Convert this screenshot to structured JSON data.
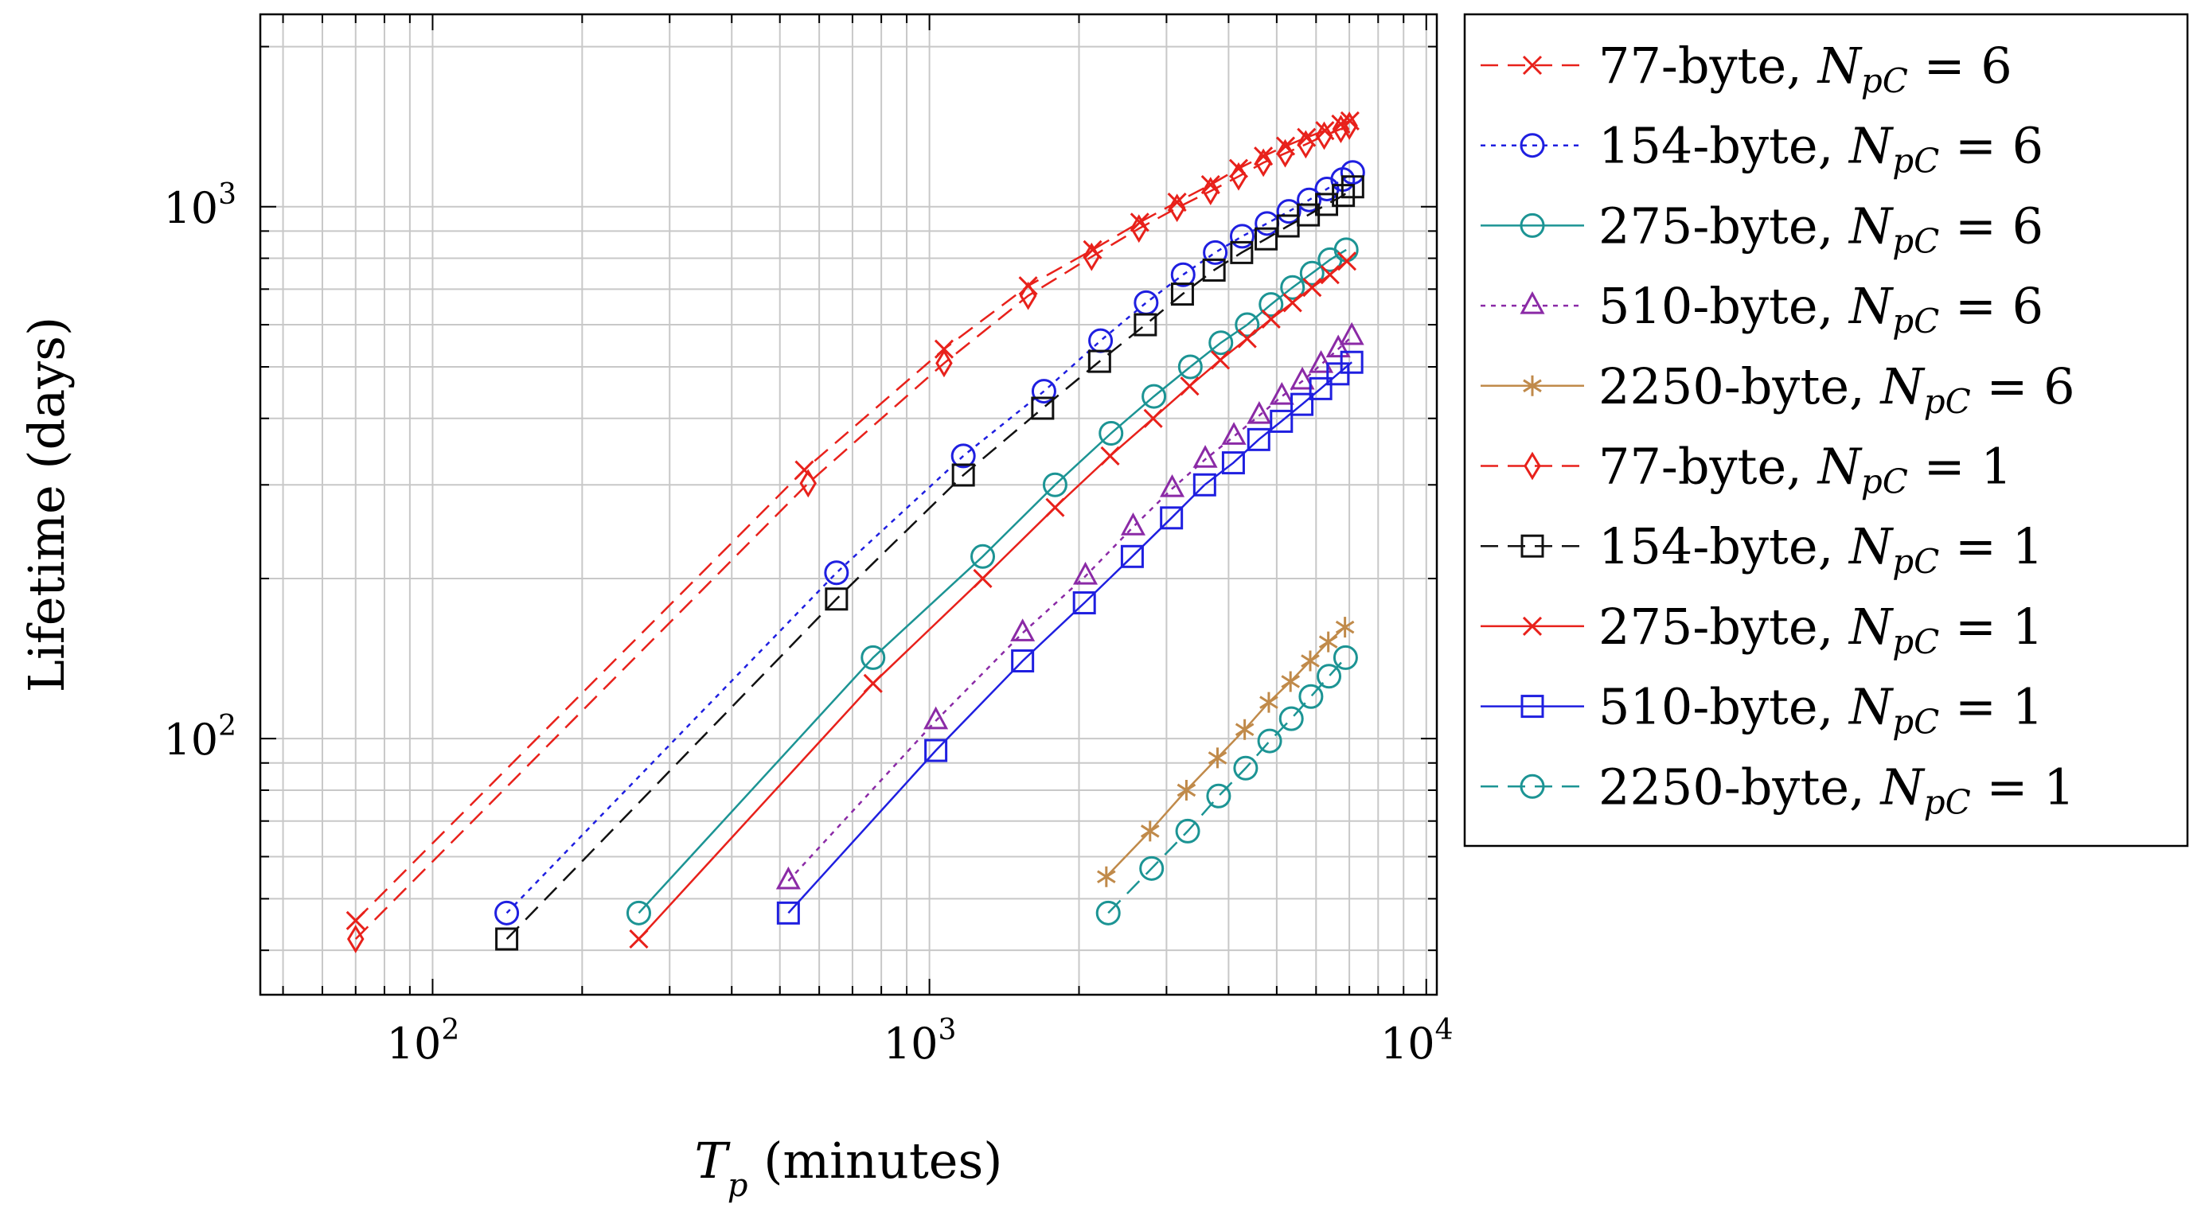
{
  "chart_data": {
    "type": "line",
    "scale": {
      "x": "log",
      "y": "log"
    },
    "xlabel": {
      "symbol": "T",
      "sub": "p",
      "text": " (minutes)"
    },
    "ylabel": "Lifetime (days)",
    "xlim": [
      45,
      10500
    ],
    "ylim": [
      33,
      2300
    ],
    "x_ticks": [
      {
        "base": "10",
        "exp": "2",
        "value": 100
      },
      {
        "base": "10",
        "exp": "3",
        "value": 1000
      },
      {
        "base": "10",
        "exp": "4",
        "value": 10000
      }
    ],
    "y_ticks": [
      {
        "base": "10",
        "exp": "2",
        "value": 100
      },
      {
        "base": "10",
        "exp": "3",
        "value": 1000
      }
    ],
    "grid": true,
    "legend_position": "outside-right",
    "series": [
      {
        "name": "77-byte, N_pC = 6",
        "label_prefix": "77-byte, ",
        "npc": "6",
        "color": "#e8211b",
        "dash": "dashed",
        "marker": "x",
        "x": [
          70,
          560,
          1070,
          1580,
          2130,
          2650,
          3150,
          3680,
          4190,
          4700,
          5210,
          5740,
          6250,
          6730,
          7020
        ],
        "y": [
          45.5,
          320,
          540,
          710,
          830,
          935,
          1020,
          1100,
          1180,
          1245,
          1300,
          1350,
          1390,
          1430,
          1450
        ]
      },
      {
        "name": "154-byte, N_pC = 6",
        "label_prefix": "154-byte, ",
        "npc": "6",
        "color": "#1f1fe0",
        "dash": "dotted",
        "marker": "circle",
        "x": [
          141,
          650,
          1170,
          1700,
          2210,
          2730,
          3240,
          3760,
          4260,
          4780,
          5290,
          5810,
          6310,
          6790,
          7110
        ],
        "y": [
          47,
          205,
          340,
          450,
          560,
          660,
          745,
          820,
          880,
          930,
          980,
          1030,
          1080,
          1125,
          1160
        ]
      },
      {
        "name": "275-byte, N_pC = 6",
        "label_prefix": "275-byte, ",
        "npc": "6",
        "color": "#1c9494",
        "dash": "solid",
        "marker": "circle",
        "x": [
          260,
          770,
          1280,
          1790,
          2320,
          2830,
          3350,
          3860,
          4360,
          4870,
          5380,
          5890,
          6400,
          6900
        ],
        "y": [
          47,
          142,
          220,
          300,
          375,
          440,
          500,
          555,
          600,
          655,
          705,
          750,
          795,
          830
        ]
      },
      {
        "name": "510-byte, N_pC = 6",
        "label_prefix": "510-byte, ",
        "npc": "6",
        "color": "#8b2aa6",
        "dash": "dotted",
        "marker": "triangle",
        "x": [
          520,
          1030,
          1540,
          2060,
          2570,
          3080,
          3590,
          4100,
          4610,
          5120,
          5630,
          6140,
          6650,
          7080
        ],
        "y": [
          54,
          108,
          158,
          202,
          250,
          295,
          335,
          370,
          405,
          440,
          470,
          505,
          540,
          570
        ]
      },
      {
        "name": "2250-byte, N_pC = 6",
        "label_prefix": "2250-byte, ",
        "npc": "6",
        "color": "#c08a4a",
        "dash": "solid",
        "marker": "asterisk",
        "x": [
          2270,
          2780,
          3290,
          3800,
          4310,
          4820,
          5330,
          5840,
          6350,
          6860
        ],
        "y": [
          55,
          67,
          80,
          92,
          104,
          117,
          128,
          140,
          152,
          162
        ]
      },
      {
        "name": "77-byte, N_pC = 1",
        "label_prefix": "77-byte, ",
        "npc": "1",
        "color": "#e8211b",
        "dash": "dashed",
        "marker": "diamond",
        "x": [
          70,
          570,
          1070,
          1580,
          2120,
          2640,
          3150,
          3680,
          4190,
          4700,
          5200,
          5720,
          6230,
          6730,
          7000
        ],
        "y": [
          42,
          302,
          508,
          680,
          805,
          910,
          995,
          1070,
          1140,
          1210,
          1260,
          1310,
          1360,
          1400,
          1420
        ]
      },
      {
        "name": "154-byte, N_pC = 1",
        "label_prefix": "154-byte, ",
        "npc": "1",
        "color": "#111111",
        "dash": "dashed",
        "marker": "square",
        "x": [
          141,
          650,
          1170,
          1690,
          2200,
          2720,
          3230,
          3740,
          4250,
          4760,
          5270,
          5790,
          6300,
          6810,
          7110
        ],
        "y": [
          42,
          183,
          313,
          418,
          512,
          600,
          685,
          760,
          820,
          870,
          920,
          965,
          1010,
          1050,
          1090
        ]
      },
      {
        "name": "275-byte, N_pC = 1",
        "label_prefix": "275-byte, ",
        "npc": "1",
        "color": "#e8211b",
        "dash": "solid",
        "marker": "x",
        "x": [
          260,
          770,
          1280,
          1790,
          2310,
          2820,
          3340,
          3850,
          4360,
          4870,
          5380,
          5890,
          6400,
          6920
        ],
        "y": [
          42,
          127,
          200,
          272,
          340,
          400,
          460,
          515,
          565,
          615,
          660,
          705,
          745,
          790
        ]
      },
      {
        "name": "510-byte, N_pC = 1",
        "label_prefix": "510-byte, ",
        "npc": "1",
        "color": "#1f1fe0",
        "dash": "solid",
        "marker": "square",
        "x": [
          520,
          1030,
          1540,
          2050,
          2560,
          3070,
          3580,
          4090,
          4600,
          5110,
          5620,
          6130,
          6640,
          7080
        ],
        "y": [
          47,
          95,
          140,
          180,
          220,
          260,
          300,
          330,
          365,
          395,
          425,
          455,
          485,
          510
        ]
      },
      {
        "name": "2250-byte, N_pC = 1",
        "label_prefix": "2250-byte, ",
        "npc": "1",
        "color": "#1c9494",
        "dash": "dashed",
        "marker": "circle",
        "x": [
          2290,
          2800,
          3310,
          3820,
          4330,
          4840,
          5350,
          5860,
          6370,
          6880
        ],
        "y": [
          47,
          57,
          67,
          78,
          88,
          99,
          109,
          120,
          131,
          142
        ]
      }
    ]
  }
}
